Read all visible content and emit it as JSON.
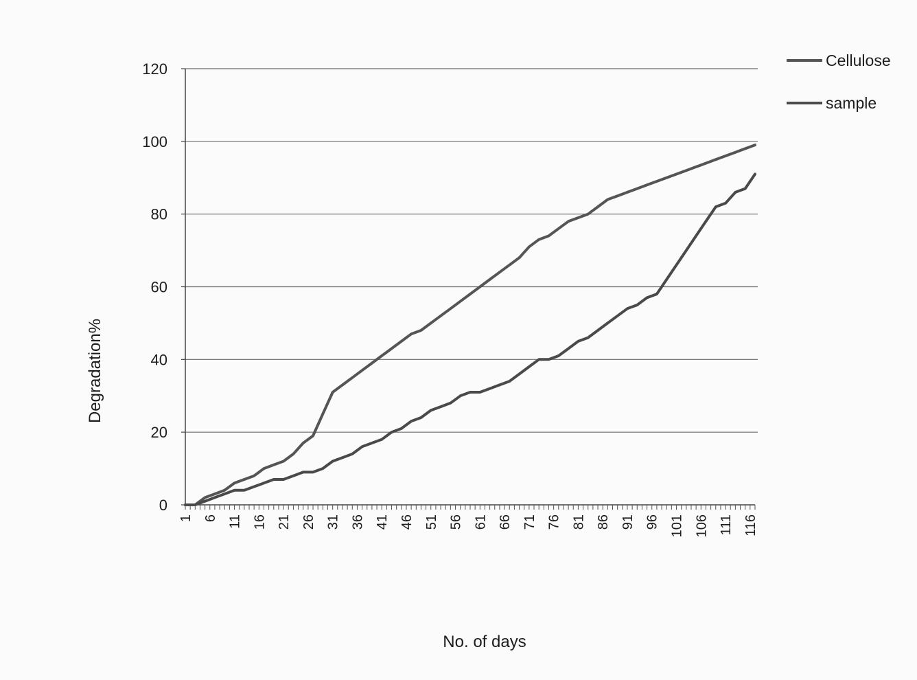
{
  "chart_data": {
    "type": "line",
    "title": "",
    "xlabel": "No. of days",
    "ylabel": "Degradation%",
    "xlim": [
      1,
      117
    ],
    "ylim": [
      0,
      120
    ],
    "y_ticks": [
      0,
      20,
      40,
      60,
      80,
      100,
      120
    ],
    "x_ticks": [
      1,
      6,
      11,
      16,
      21,
      26,
      31,
      36,
      41,
      46,
      51,
      56,
      61,
      66,
      71,
      76,
      81,
      86,
      91,
      96,
      101,
      106,
      111,
      116
    ],
    "grid": "horizontal",
    "legend_position": "top-right",
    "series": [
      {
        "name": "Cellulose",
        "color": "#555555",
        "points": [
          [
            1,
            0
          ],
          [
            3,
            0
          ],
          [
            5,
            2
          ],
          [
            7,
            3
          ],
          [
            9,
            4
          ],
          [
            11,
            6
          ],
          [
            13,
            7
          ],
          [
            15,
            8
          ],
          [
            17,
            10
          ],
          [
            19,
            11
          ],
          [
            21,
            12
          ],
          [
            23,
            14
          ],
          [
            25,
            17
          ],
          [
            27,
            19
          ],
          [
            29,
            25
          ],
          [
            31,
            31
          ],
          [
            33,
            33
          ],
          [
            35,
            35
          ],
          [
            37,
            37
          ],
          [
            39,
            39
          ],
          [
            41,
            41
          ],
          [
            43,
            43
          ],
          [
            45,
            45
          ],
          [
            47,
            47
          ],
          [
            49,
            48
          ],
          [
            51,
            50
          ],
          [
            53,
            52
          ],
          [
            55,
            54
          ],
          [
            57,
            56
          ],
          [
            59,
            58
          ],
          [
            61,
            60
          ],
          [
            63,
            62
          ],
          [
            65,
            64
          ],
          [
            67,
            66
          ],
          [
            69,
            68
          ],
          [
            71,
            71
          ],
          [
            73,
            73
          ],
          [
            75,
            74
          ],
          [
            77,
            76
          ],
          [
            79,
            78
          ],
          [
            81,
            79
          ],
          [
            83,
            80
          ],
          [
            85,
            82
          ],
          [
            87,
            84
          ],
          [
            89,
            85
          ],
          [
            91,
            86
          ],
          [
            93,
            87
          ],
          [
            95,
            88
          ],
          [
            97,
            89
          ],
          [
            99,
            90
          ],
          [
            101,
            91
          ],
          [
            103,
            92
          ],
          [
            105,
            93
          ],
          [
            107,
            94
          ],
          [
            109,
            95
          ],
          [
            111,
            96
          ],
          [
            113,
            97
          ],
          [
            115,
            98
          ],
          [
            117,
            99
          ]
        ]
      },
      {
        "name": "sample",
        "color": "#4a4a4a",
        "points": [
          [
            1,
            0
          ],
          [
            3,
            0
          ],
          [
            5,
            1
          ],
          [
            7,
            2
          ],
          [
            9,
            3
          ],
          [
            11,
            4
          ],
          [
            13,
            4
          ],
          [
            15,
            5
          ],
          [
            17,
            6
          ],
          [
            19,
            7
          ],
          [
            21,
            7
          ],
          [
            23,
            8
          ],
          [
            25,
            9
          ],
          [
            27,
            9
          ],
          [
            29,
            10
          ],
          [
            31,
            12
          ],
          [
            33,
            13
          ],
          [
            35,
            14
          ],
          [
            37,
            16
          ],
          [
            39,
            17
          ],
          [
            41,
            18
          ],
          [
            43,
            20
          ],
          [
            45,
            21
          ],
          [
            47,
            23
          ],
          [
            49,
            24
          ],
          [
            51,
            26
          ],
          [
            53,
            27
          ],
          [
            55,
            28
          ],
          [
            57,
            30
          ],
          [
            59,
            31
          ],
          [
            61,
            31
          ],
          [
            63,
            32
          ],
          [
            65,
            33
          ],
          [
            67,
            34
          ],
          [
            69,
            36
          ],
          [
            71,
            38
          ],
          [
            73,
            40
          ],
          [
            75,
            40
          ],
          [
            77,
            41
          ],
          [
            79,
            43
          ],
          [
            81,
            45
          ],
          [
            83,
            46
          ],
          [
            85,
            48
          ],
          [
            87,
            50
          ],
          [
            89,
            52
          ],
          [
            91,
            54
          ],
          [
            93,
            55
          ],
          [
            95,
            57
          ],
          [
            97,
            58
          ],
          [
            99,
            62
          ],
          [
            101,
            66
          ],
          [
            103,
            70
          ],
          [
            105,
            74
          ],
          [
            107,
            78
          ],
          [
            109,
            82
          ],
          [
            111,
            83
          ],
          [
            113,
            86
          ],
          [
            115,
            87
          ],
          [
            117,
            91
          ]
        ]
      }
    ]
  }
}
